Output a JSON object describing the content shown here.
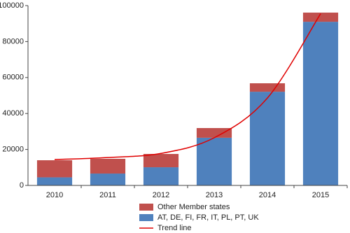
{
  "chart_data": {
    "type": "bar",
    "stacked": true,
    "categories": [
      "2010",
      "2011",
      "2012",
      "2013",
      "2014",
      "2015"
    ],
    "series": [
      {
        "name": "Other Member states",
        "color": "#c0504d",
        "values": [
          9500,
          8200,
          7400,
          5400,
          4700,
          5100
        ]
      },
      {
        "name": "AT, DE, FI, FR, IT, PL, PT, UK",
        "color": "#4f81bd",
        "values": [
          4500,
          6600,
          10100,
          26500,
          52100,
          91000
        ]
      },
      {
        "name": "Trend line",
        "color": "#e00000",
        "type": "line",
        "values": [
          14400,
          15500,
          17800,
          26500,
          48600,
          95500
        ]
      }
    ],
    "ylim": [
      0,
      100000
    ],
    "yticks": [
      0,
      20000,
      40000,
      60000,
      80000,
      100000
    ]
  }
}
